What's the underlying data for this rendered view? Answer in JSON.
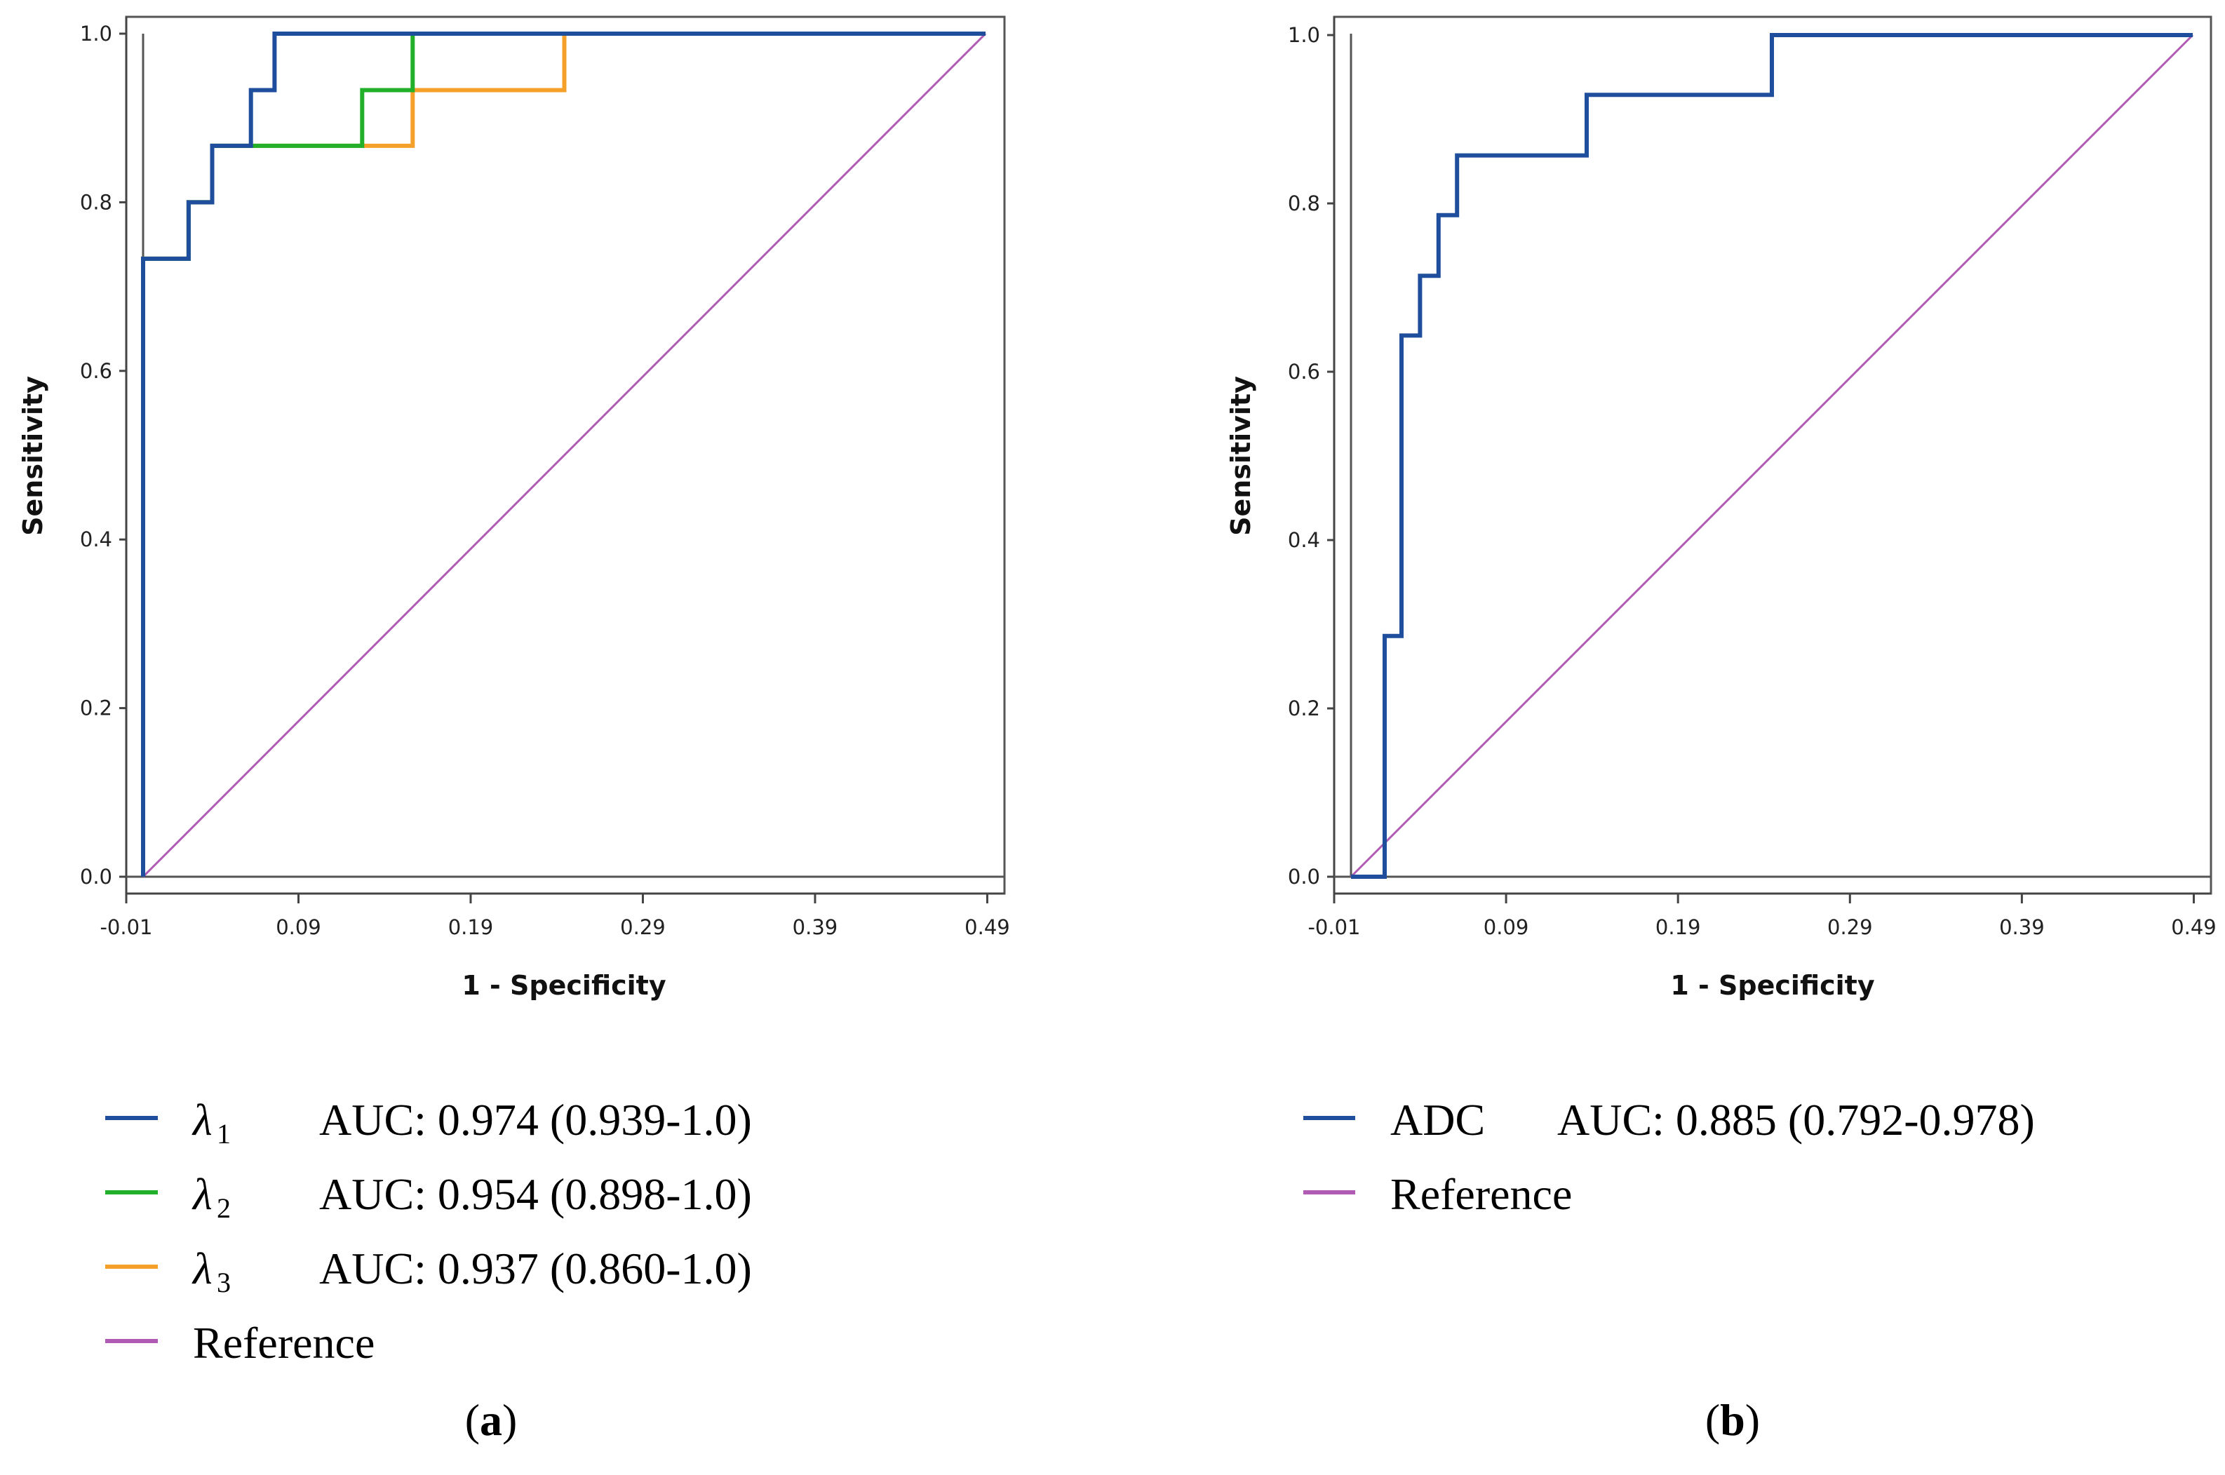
{
  "chart_data": [
    {
      "type": "line",
      "panel_label": "a",
      "xlabel": "1 - Specificity",
      "ylabel": "Sensitivity",
      "xlim": [
        -0.01,
        0.5
      ],
      "ylim": [
        0.0,
        1.0
      ],
      "x_ticks": [
        "-0.01",
        "0.09",
        "0.19",
        "0.29",
        "0.39",
        "0.49"
      ],
      "y_ticks": [
        "0.0",
        "0.2",
        "0.4",
        "0.6",
        "0.8",
        "1.0"
      ],
      "series": [
        {
          "name": "λ1",
          "symbol": "λ",
          "sub": "1",
          "auc_text": "AUC: 0.974 (0.939-1.0)",
          "color": "#1f4e9c",
          "x": [
            0.0,
            0.0,
            0.027,
            0.027,
            0.041,
            0.041,
            0.049,
            0.049,
            0.064,
            0.064,
            0.078,
            0.078,
            0.5
          ],
          "y": [
            0.0,
            0.733,
            0.733,
            0.8,
            0.8,
            0.867,
            0.867,
            0.867,
            0.867,
            0.933,
            0.933,
            1.0,
            1.0
          ]
        },
        {
          "name": "λ2",
          "symbol": "λ",
          "sub": "2",
          "auc_text": "AUC: 0.954 (0.898-1.0)",
          "color": "#22b02a",
          "x": [
            0.0,
            0.0,
            0.027,
            0.027,
            0.041,
            0.041,
            0.064,
            0.064,
            0.13,
            0.13,
            0.16,
            0.16,
            0.5
          ],
          "y": [
            0.0,
            0.733,
            0.733,
            0.8,
            0.8,
            0.867,
            0.867,
            0.867,
            0.867,
            0.933,
            0.933,
            1.0,
            1.0
          ]
        },
        {
          "name": "λ3",
          "symbol": "λ",
          "sub": "3",
          "auc_text": "AUC: 0.937 (0.860-1.0)",
          "color": "#f5a02a",
          "x": [
            0.0,
            0.0,
            0.027,
            0.027,
            0.041,
            0.041,
            0.064,
            0.064,
            0.16,
            0.16,
            0.25,
            0.25,
            0.5
          ],
          "y": [
            0.0,
            0.733,
            0.733,
            0.8,
            0.8,
            0.867,
            0.867,
            0.867,
            0.867,
            0.933,
            0.933,
            1.0,
            1.0
          ]
        },
        {
          "name": "Reference",
          "symbol": "",
          "sub": "",
          "auc_text": "",
          "label": "Reference",
          "color": "#b05cb5",
          "x": [
            0.0,
            0.5
          ],
          "y": [
            0.0,
            1.0
          ]
        }
      ]
    },
    {
      "type": "line",
      "panel_label": "b",
      "xlabel": "1 - Specificity",
      "ylabel": "Sensitivity",
      "xlim": [
        -0.01,
        0.5
      ],
      "ylim": [
        0.0,
        1.0
      ],
      "x_ticks": [
        "-0.01",
        "0.09",
        "0.19",
        "0.29",
        "0.39",
        "0.49"
      ],
      "y_ticks": [
        "0.0",
        "0.2",
        "0.4",
        "0.6",
        "0.8",
        "1.0"
      ],
      "series": [
        {
          "name": "ADC",
          "label": "ADC",
          "auc_text": "AUC: 0.885 (0.792-0.978)",
          "color": "#1f4e9c",
          "x": [
            0.0,
            0.02,
            0.02,
            0.03,
            0.03,
            0.041,
            0.041,
            0.052,
            0.052,
            0.063,
            0.063,
            0.14,
            0.14,
            0.25,
            0.25,
            0.5
          ],
          "y": [
            0.0,
            0.0,
            0.286,
            0.286,
            0.643,
            0.643,
            0.714,
            0.714,
            0.786,
            0.786,
            0.857,
            0.857,
            0.929,
            0.929,
            1.0,
            1.0
          ]
        },
        {
          "name": "Reference",
          "label": "Reference",
          "auc_text": "",
          "color": "#b05cb5",
          "x": [
            0.0,
            0.5
          ],
          "y": [
            0.0,
            1.0
          ]
        }
      ]
    }
  ]
}
